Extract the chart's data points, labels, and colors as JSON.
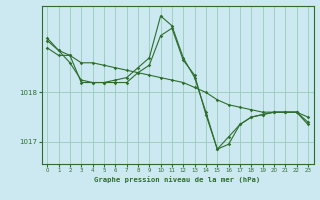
{
  "title": "Graphe pression niveau de la mer (hPa)",
  "bg_color": "#cce8f0",
  "grid_color": "#99ccbb",
  "line_color": "#2d6e2d",
  "xlim": [
    -0.5,
    23.5
  ],
  "ylim": [
    1016.55,
    1019.75
  ],
  "yticks": [
    1017,
    1018
  ],
  "xticks": [
    0,
    1,
    2,
    3,
    4,
    5,
    6,
    7,
    8,
    9,
    10,
    11,
    12,
    13,
    14,
    15,
    16,
    17,
    18,
    19,
    20,
    21,
    22,
    23
  ],
  "series1_x": [
    0,
    1,
    2,
    3,
    4,
    5,
    6,
    7,
    8,
    9,
    10,
    11,
    12,
    13,
    14,
    15,
    16,
    17,
    18,
    19,
    20,
    21,
    22,
    23
  ],
  "series1_y": [
    1018.9,
    1018.75,
    1018.75,
    1018.6,
    1018.6,
    1018.55,
    1018.5,
    1018.45,
    1018.4,
    1018.35,
    1018.3,
    1018.25,
    1018.2,
    1018.1,
    1018.0,
    1017.85,
    1017.75,
    1017.7,
    1017.65,
    1017.6,
    1017.6,
    1017.6,
    1017.6,
    1017.5
  ],
  "series2_x": [
    0,
    1,
    2,
    3,
    4,
    5,
    6,
    7,
    8,
    9,
    10,
    11,
    12,
    13,
    14,
    15,
    16,
    17,
    18,
    19,
    20,
    21,
    22,
    23
  ],
  "series2_y": [
    1019.05,
    1018.85,
    1018.6,
    1018.25,
    1018.2,
    1018.2,
    1018.25,
    1018.3,
    1018.5,
    1018.7,
    1019.55,
    1019.35,
    1018.7,
    1018.3,
    1017.6,
    1016.85,
    1016.95,
    1017.35,
    1017.5,
    1017.55,
    1017.6,
    1017.6,
    1017.6,
    1017.4
  ],
  "series3_x": [
    0,
    1,
    2,
    3,
    4,
    5,
    6,
    7,
    8,
    9,
    10,
    11,
    12,
    13,
    14,
    15,
    16,
    17,
    18,
    19,
    20,
    21,
    22,
    23
  ],
  "series3_y": [
    1019.1,
    1018.85,
    1018.75,
    1018.2,
    1018.2,
    1018.2,
    1018.2,
    1018.2,
    1018.4,
    1018.55,
    1019.15,
    1019.3,
    1018.65,
    1018.35,
    1017.55,
    1016.85,
    1017.1,
    1017.35,
    1017.5,
    1017.55,
    1017.6,
    1017.6,
    1017.6,
    1017.35
  ]
}
